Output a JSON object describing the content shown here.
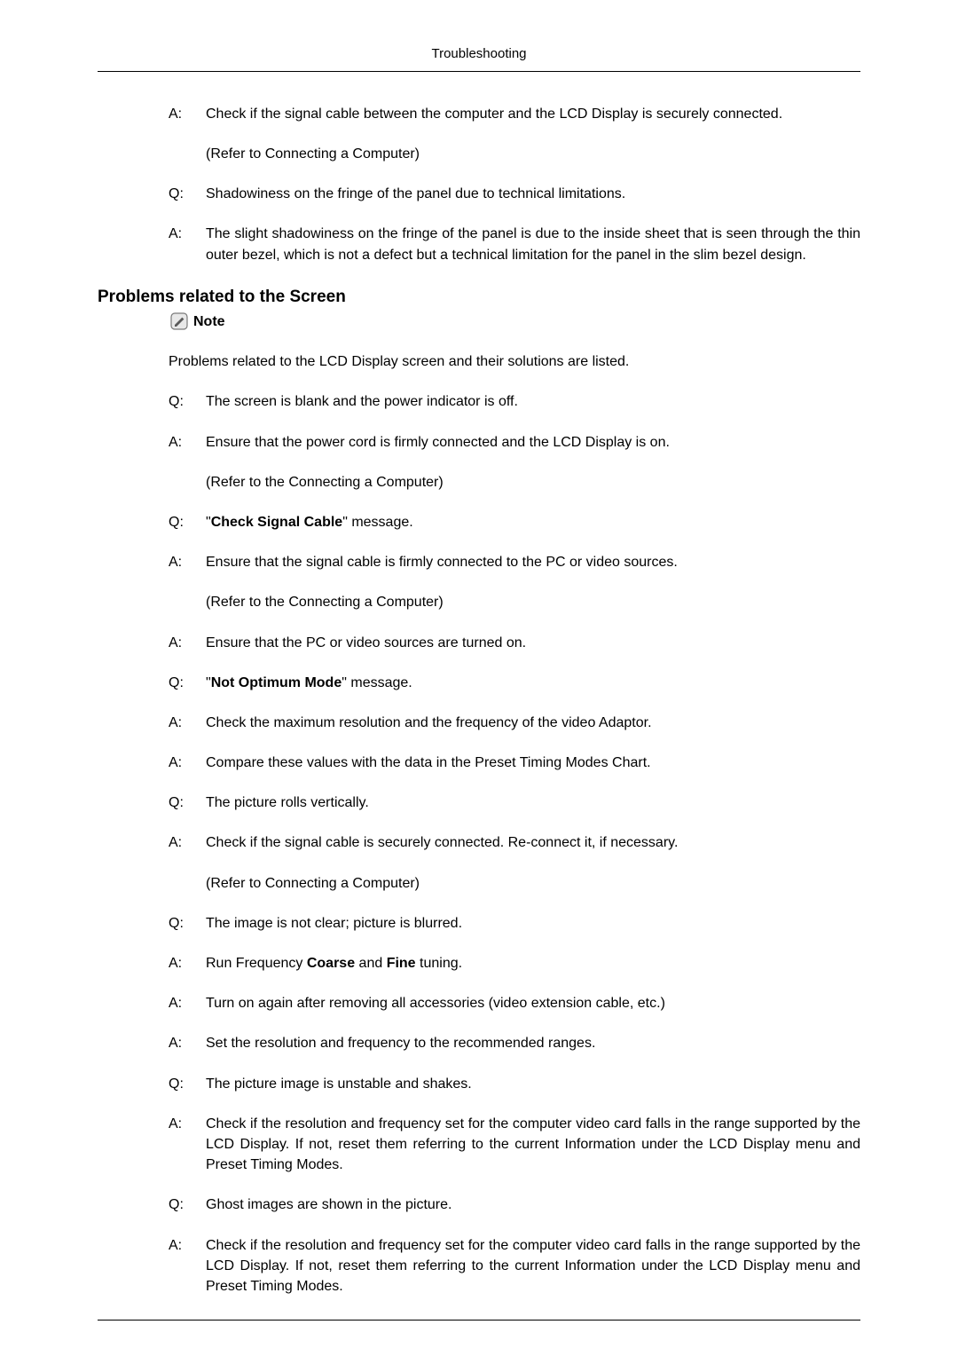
{
  "header": {
    "title": "Troubleshooting"
  },
  "top": {
    "items": [
      {
        "label": "A:",
        "text": "Check if the signal cable between the computer and the LCD Display is securely connected.",
        "refer": "(Refer to Connecting a Computer)"
      },
      {
        "label": "Q:",
        "text": "Shadowiness on the fringe of the panel due to technical limitations."
      },
      {
        "label": "A:",
        "text": "The slight shadowiness on the fringe of the panel is due to the inside sheet that is seen through the thin outer bezel, which is not a defect but a technical limitation for the panel in the slim bezel design."
      }
    ]
  },
  "section": {
    "heading": "Problems related to the Screen",
    "note_label": "Note",
    "intro": "Problems related to the LCD Display screen and their solutions are listed.",
    "items": [
      {
        "label": "Q:",
        "text": "The screen is blank and the power indicator is off."
      },
      {
        "label": "A:",
        "text": "Ensure that the power cord is firmly connected and the LCD Display is on.",
        "refer": "(Refer to the Connecting a Computer)"
      },
      {
        "label": "Q:",
        "prefix": "\"",
        "bold": "Check Signal Cable",
        "suffix": "\" message."
      },
      {
        "label": "A:",
        "text": "Ensure that the signal cable is firmly connected to the PC or video sources.",
        "refer": "(Refer to the Connecting a Computer)"
      },
      {
        "label": "A:",
        "text": "Ensure that the PC or video sources are turned on."
      },
      {
        "label": "Q:",
        "prefix": "\"",
        "bold": "Not Optimum Mode",
        "suffix": "\" message."
      },
      {
        "label": "A:",
        "text": "Check the maximum resolution and the frequency of the video Adaptor."
      },
      {
        "label": "A:",
        "text": "Compare these values with the data in the Preset Timing Modes Chart."
      },
      {
        "label": "Q:",
        "text": "The picture rolls vertically."
      },
      {
        "label": "A:",
        "text": "Check if the signal cable is securely connected. Re-connect it, if necessary.",
        "refer": "(Refer to Connecting a Computer)"
      },
      {
        "label": "Q:",
        "text": "The image is not clear; picture is blurred."
      },
      {
        "label": "A:",
        "pre": "Run Frequency ",
        "bold": "Coarse",
        "mid": " and ",
        "bold2": "Fine",
        "post": " tuning."
      },
      {
        "label": "A:",
        "text": "Turn on again after removing all accessories (video extension cable, etc.)"
      },
      {
        "label": "A:",
        "text": "Set the resolution and frequency to the recommended ranges."
      },
      {
        "label": "Q:",
        "text": "The picture image is unstable and shakes."
      },
      {
        "label": "A:",
        "text": "Check if the resolution and frequency set for the computer video card falls in the range supported by the LCD Display. If not, reset them referring to the current Information under the LCD Display menu and Preset Timing Modes."
      },
      {
        "label": "Q:",
        "text": "Ghost images are shown in the picture."
      },
      {
        "label": "A:",
        "text": "Check if the resolution and frequency set for the computer video card falls in the range supported by the LCD Display. If not, reset them referring to the current Information under the LCD Display menu and Preset Timing Modes."
      }
    ]
  },
  "icon_colors": {
    "stroke": "#7a7a7a",
    "fill": "#cfcfcf",
    "pencil": "#5a5a5a"
  }
}
